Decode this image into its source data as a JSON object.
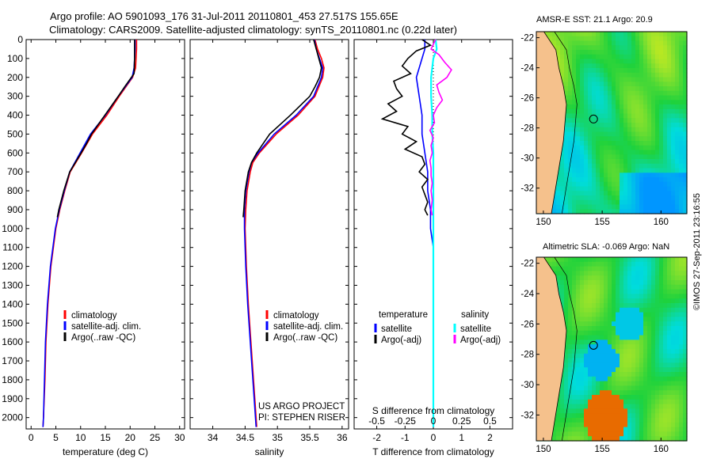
{
  "header": {
    "title_line1": "Argo profile: AO 5901093_176 31-Jul-2011 20110801_453 27.517S 155.65E",
    "title_line2": "Climatology: CARS2009. Satellite-adjusted climatology: synTS_20110801.nc (0.22d later)"
  },
  "maps": {
    "sst_title": "AMSR-E SST: 21.1 Argo: 20.9",
    "sla_title": "Altimetric SLA: -0.069 Argo: NaN",
    "lat_ticks": [
      "-22",
      "-24",
      "-26",
      "-28",
      "-30",
      "-32"
    ],
    "lon_ticks": [
      "150",
      "155",
      "160"
    ],
    "stamp": "©IMOS 27-Sep-2011 23:16:55"
  },
  "colors": {
    "climatology": "#ff0000",
    "satellite": "#0000ff",
    "argo": "#000000",
    "sal_satellite": "#00ffff",
    "sal_argo": "#ff00ff",
    "land": "#f5c18c"
  },
  "chart_data": [
    {
      "type": "line",
      "name": "temperature-profile",
      "xlabel": "temperature (deg C)",
      "xlim": [
        -1,
        31
      ],
      "xticks": [
        "0",
        "5",
        "10",
        "15",
        "20",
        "25",
        "30"
      ],
      "ylim": [
        2060,
        0
      ],
      "yticks": [
        "0",
        "100",
        "200",
        "300",
        "400",
        "500",
        "600",
        "700",
        "800",
        "900",
        "1000",
        "1100",
        "1200",
        "1300",
        "1400",
        "1500",
        "1600",
        "1700",
        "1800",
        "1900",
        "2000"
      ],
      "legend": [
        "climatology",
        "satellite-adj. clim.",
        "Argo(..raw -QC)"
      ],
      "series": [
        {
          "name": "climatology",
          "depth": [
            0,
            50,
            100,
            150,
            200,
            300,
            400,
            500,
            600,
            700,
            800,
            900,
            1000,
            1200,
            1400,
            1600,
            1800,
            2000,
            2050
          ],
          "values": [
            21.3,
            21.3,
            21.2,
            21.1,
            20.5,
            17.8,
            15.3,
            12.4,
            10.2,
            7.9,
            6.8,
            5.8,
            5.0,
            4.0,
            3.4,
            3.0,
            2.8,
            2.5,
            2.4
          ]
        },
        {
          "name": "satellite",
          "depth": [
            0,
            50,
            100,
            150,
            200,
            300,
            400,
            500,
            600,
            700,
            800,
            900,
            1000,
            1200,
            1400,
            1600,
            1800,
            2000,
            2050
          ],
          "values": [
            21.0,
            21.0,
            20.9,
            20.8,
            20.4,
            17.6,
            15.0,
            12.0,
            9.9,
            7.8,
            6.7,
            5.7,
            4.9,
            3.9,
            3.3,
            2.9,
            2.7,
            2.5,
            2.4
          ]
        },
        {
          "name": "argo",
          "depth": [
            0,
            50,
            100,
            180,
            250,
            300,
            400,
            500,
            550,
            600,
            700,
            800,
            900,
            940
          ],
          "values": [
            20.9,
            20.9,
            20.9,
            20.8,
            18.9,
            17.6,
            14.9,
            12.2,
            11.2,
            10.1,
            7.8,
            6.6,
            5.6,
            5.3
          ]
        }
      ]
    },
    {
      "type": "line",
      "name": "salinity-profile",
      "xlabel": "salinity",
      "xlim": [
        33.65,
        36.1
      ],
      "xticks": [
        "34",
        "34.5",
        "35",
        "35.5",
        "36"
      ],
      "legend": [
        "climatology",
        "satellite-adj. clim.",
        "Argo(..raw -QC)"
      ],
      "annotation": [
        "US ARGO PROJECT",
        "PI: STEPHEN RISER"
      ],
      "series": [
        {
          "name": "climatology",
          "depth": [
            0,
            50,
            100,
            150,
            200,
            300,
            400,
            500,
            600,
            650,
            700,
            800,
            900,
            1000,
            1200,
            1400,
            1600,
            1800,
            2000,
            2050
          ],
          "values": [
            35.58,
            35.62,
            35.68,
            35.72,
            35.7,
            35.58,
            35.32,
            34.98,
            34.72,
            34.62,
            34.58,
            34.53,
            34.51,
            34.5,
            34.52,
            34.55,
            34.59,
            34.63,
            34.67,
            34.68
          ]
        },
        {
          "name": "satellite",
          "depth": [
            0,
            50,
            100,
            150,
            200,
            300,
            400,
            500,
            600,
            650,
            700,
            800,
            900,
            1000,
            1200,
            1400,
            1600,
            1800,
            2000,
            2050
          ],
          "values": [
            35.57,
            35.6,
            35.65,
            35.7,
            35.68,
            35.56,
            35.29,
            34.95,
            34.7,
            34.6,
            34.56,
            34.51,
            34.49,
            34.49,
            34.51,
            34.54,
            34.58,
            34.62,
            34.66,
            34.67
          ]
        },
        {
          "name": "argo",
          "depth": [
            0,
            50,
            100,
            150,
            200,
            250,
            300,
            400,
            500,
            600,
            650,
            700,
            800,
            900,
            940
          ],
          "values": [
            35.56,
            35.6,
            35.64,
            35.68,
            35.65,
            35.58,
            35.5,
            35.2,
            34.88,
            34.68,
            34.6,
            34.55,
            34.5,
            34.48,
            34.47
          ]
        }
      ]
    },
    {
      "type": "line",
      "name": "difference-profile",
      "xlabel": "T difference from climatology",
      "xlabel_top": "S difference from climatology",
      "xlim": [
        -2.5,
        2.5
      ],
      "xticks": [
        "-2",
        "-1",
        "0",
        "1",
        "2"
      ],
      "xticks_top": [
        "-0.5",
        "-0.25",
        "0",
        "0.25",
        "0.5"
      ],
      "legend_titles": [
        "temperature",
        "salinity"
      ],
      "legend": [
        "satellite",
        "Argo(-adj)",
        "satellite",
        "Argo(-adj)"
      ],
      "series": [
        {
          "name": "temperature satellite",
          "depth": [
            0,
            50,
            100,
            200,
            300,
            400,
            500,
            600,
            700,
            800,
            900,
            1000,
            1100,
            1200,
            1500,
            1800,
            2050
          ],
          "values": [
            -0.3,
            -0.3,
            -0.4,
            -0.6,
            -0.5,
            -0.4,
            -0.4,
            -0.3,
            -0.2,
            -0.2,
            -0.1,
            -0.1,
            0,
            0,
            0,
            0,
            0
          ]
        },
        {
          "name": "temperature argo",
          "depth": [
            0,
            30,
            60,
            100,
            140,
            180,
            220,
            260,
            300,
            340,
            380,
            420,
            460,
            500,
            540,
            580,
            620,
            660,
            700,
            740,
            780,
            820,
            860,
            900,
            930
          ],
          "values": [
            -0.4,
            -0.1,
            -0.6,
            -0.9,
            -1.1,
            -0.8,
            -1.4,
            -1.3,
            -1.1,
            -1.6,
            -1.3,
            -1.8,
            -0.9,
            -1.1,
            -0.6,
            -1.0,
            -0.4,
            -0.3,
            -0.5,
            -0.2,
            -0.4,
            -0.3,
            -0.2,
            -0.3,
            -0.2
          ]
        },
        {
          "name": "salinity satellite",
          "depth": [
            0,
            50,
            100,
            200,
            300,
            400,
            500,
            600,
            700,
            800,
            900,
            1000,
            1200,
            1500,
            1800,
            2050
          ],
          "values": [
            0.02,
            0.03,
            0.0,
            -0.02,
            -0.02,
            -0.01,
            -0.01,
            0,
            0,
            0,
            0,
            0,
            0,
            0,
            0,
            0
          ]
        },
        {
          "name": "salinity argo",
          "depth": [
            0,
            50,
            80,
            120,
            160,
            200,
            240,
            280,
            320,
            360,
            400,
            440,
            480,
            520,
            560,
            600,
            640,
            680,
            720,
            760,
            800,
            850,
            900,
            930
          ],
          "values": [
            0.02,
            -0.02,
            0.05,
            0.1,
            0.16,
            0.12,
            0.03,
            0.05,
            0.08,
            0.03,
            0.0,
            0.01,
            -0.03,
            0.0,
            -0.02,
            -0.01,
            -0.03,
            -0.02,
            -0.02,
            -0.01,
            -0.02,
            -0.01,
            -0.02,
            -0.01
          ]
        }
      ]
    }
  ]
}
